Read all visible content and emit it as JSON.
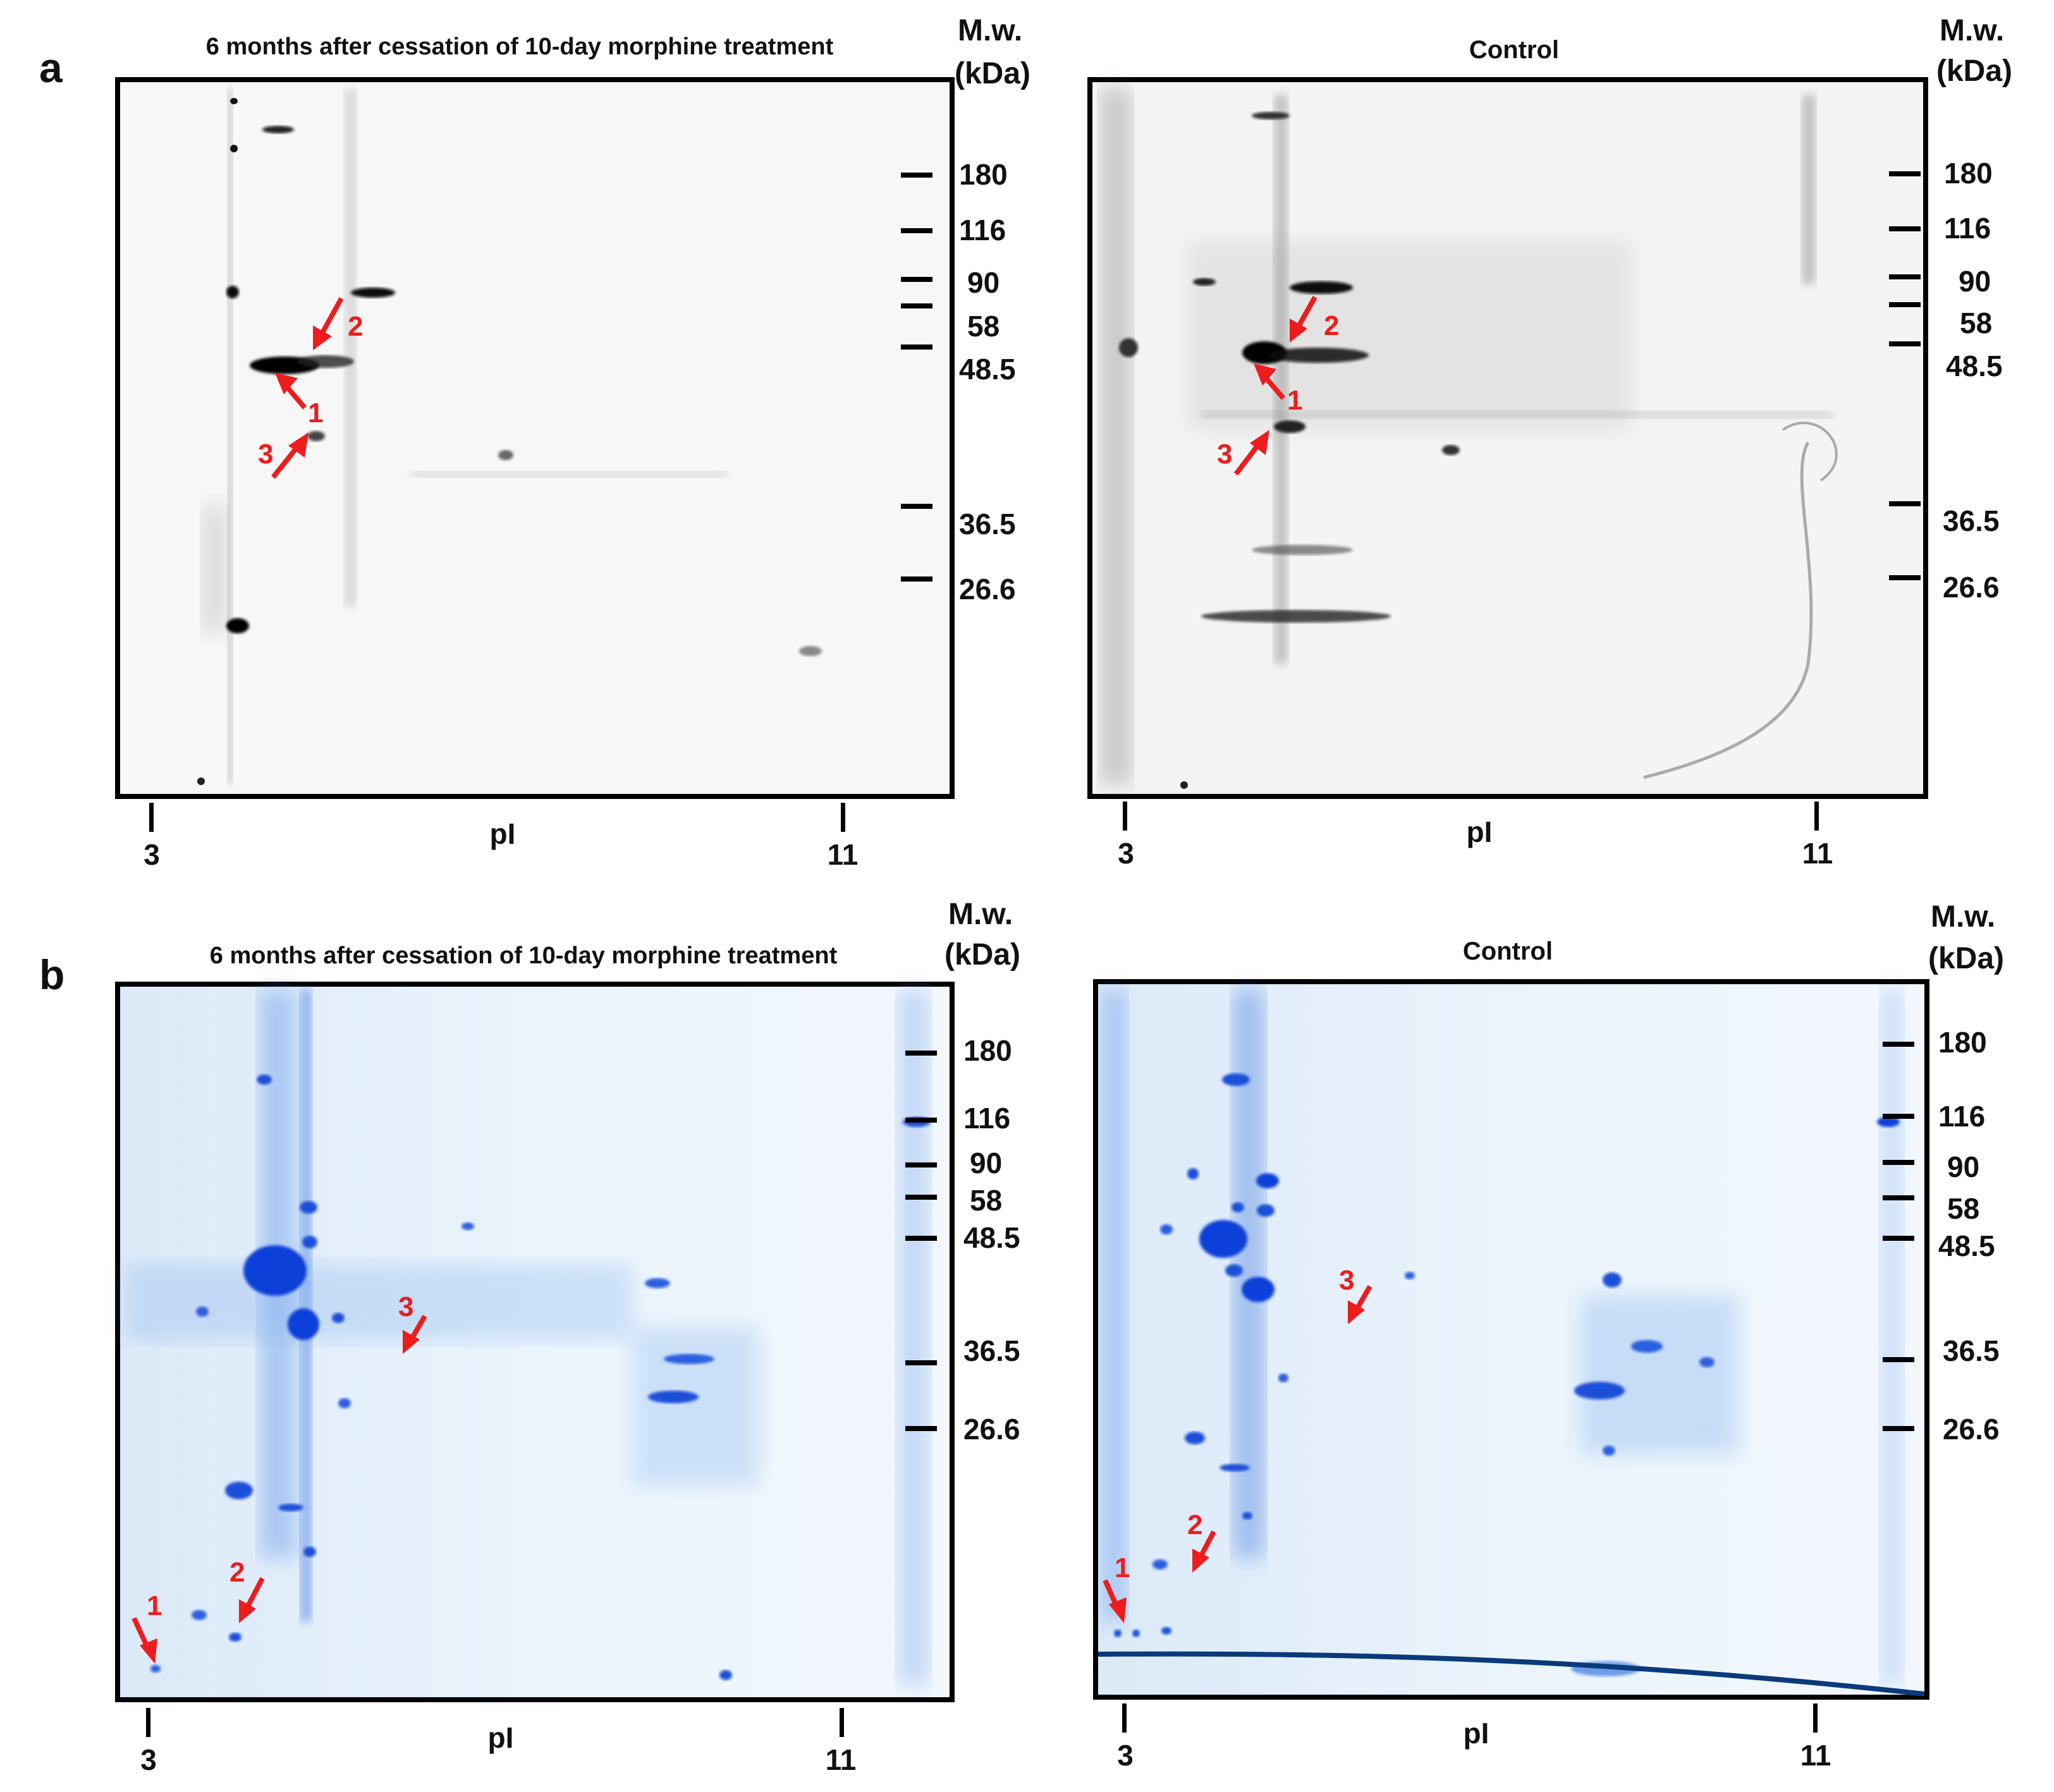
{
  "figure": {
    "panels": [
      {
        "letter": "a",
        "stain": "silver",
        "gels": [
          {
            "id": "a-left",
            "title": "6 months after cessation of 10-day morphine treatment",
            "mw_heading_line1": "M.w.",
            "mw_heading_line2": "(kDa)",
            "mw_markers": [
              "180",
              "116",
              "90",
              "58",
              "48.5",
              "36.5",
              "26.6"
            ],
            "pi_start": "3",
            "pi_label": "pI",
            "pi_end": "11",
            "arrows": [
              "2",
              "1",
              "3"
            ]
          },
          {
            "id": "a-right",
            "title": "Control",
            "mw_heading_line1": "M.w.",
            "mw_heading_line2": "(kDa)",
            "mw_markers": [
              "180",
              "116",
              "90",
              "58",
              "48.5",
              "36.5",
              "26.6"
            ],
            "pi_start": "3",
            "pi_label": "pI",
            "pi_end": "11",
            "arrows": [
              "2",
              "1",
              "3"
            ]
          }
        ]
      },
      {
        "letter": "b",
        "stain": "coomassie",
        "gels": [
          {
            "id": "b-left",
            "title": "6 months after cessation of 10-day morphine treatment",
            "mw_heading_line1": "M.w.",
            "mw_heading_line2": "(kDa)",
            "mw_markers": [
              "180",
              "116",
              "90",
              "58",
              "48.5",
              "36.5",
              "26.6"
            ],
            "pi_start": "3",
            "pi_label": "pI",
            "pi_end": "11",
            "arrows": [
              "3",
              "2",
              "1"
            ]
          },
          {
            "id": "b-right",
            "title": "Control",
            "mw_heading_line1": "M.w.",
            "mw_heading_line2": "(kDa)",
            "mw_markers": [
              "180",
              "116",
              "90",
              "58",
              "48.5",
              "36.5",
              "26.6"
            ],
            "pi_start": "3",
            "pi_label": "pI",
            "pi_end": "11",
            "arrows": [
              "3",
              "2",
              "1"
            ]
          }
        ]
      }
    ]
  },
  "colors": {
    "arrow": "#ee1c1c",
    "silver_spot": "#111111",
    "coomassie_spot": "#1450d8",
    "coomassie_bg": "#e6f1fb"
  }
}
